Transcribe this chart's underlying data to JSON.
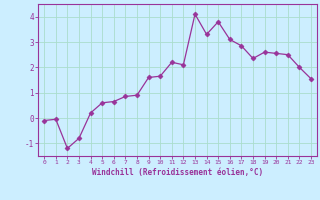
{
  "x": [
    0,
    1,
    2,
    3,
    4,
    5,
    6,
    7,
    8,
    9,
    10,
    11,
    12,
    13,
    14,
    15,
    16,
    17,
    18,
    19,
    20,
    21,
    22,
    23
  ],
  "y": [
    -0.1,
    -0.05,
    -1.2,
    -0.8,
    0.2,
    0.6,
    0.65,
    0.85,
    0.9,
    1.6,
    1.65,
    2.2,
    2.1,
    4.1,
    3.3,
    3.8,
    3.1,
    2.85,
    2.35,
    2.6,
    2.55,
    2.5,
    2.0,
    1.55
  ],
  "line_color": "#993399",
  "marker": "D",
  "marker_size": 2.5,
  "bg_color": "#cceeff",
  "grid_color": "#aaddcc",
  "xlabel": "Windchill (Refroidissement éolien,°C)",
  "xlim": [
    -0.5,
    23.5
  ],
  "ylim": [
    -1.5,
    4.5
  ],
  "yticks": [
    -1,
    0,
    1,
    2,
    3,
    4
  ],
  "xticks": [
    0,
    1,
    2,
    3,
    4,
    5,
    6,
    7,
    8,
    9,
    10,
    11,
    12,
    13,
    14,
    15,
    16,
    17,
    18,
    19,
    20,
    21,
    22,
    23
  ]
}
